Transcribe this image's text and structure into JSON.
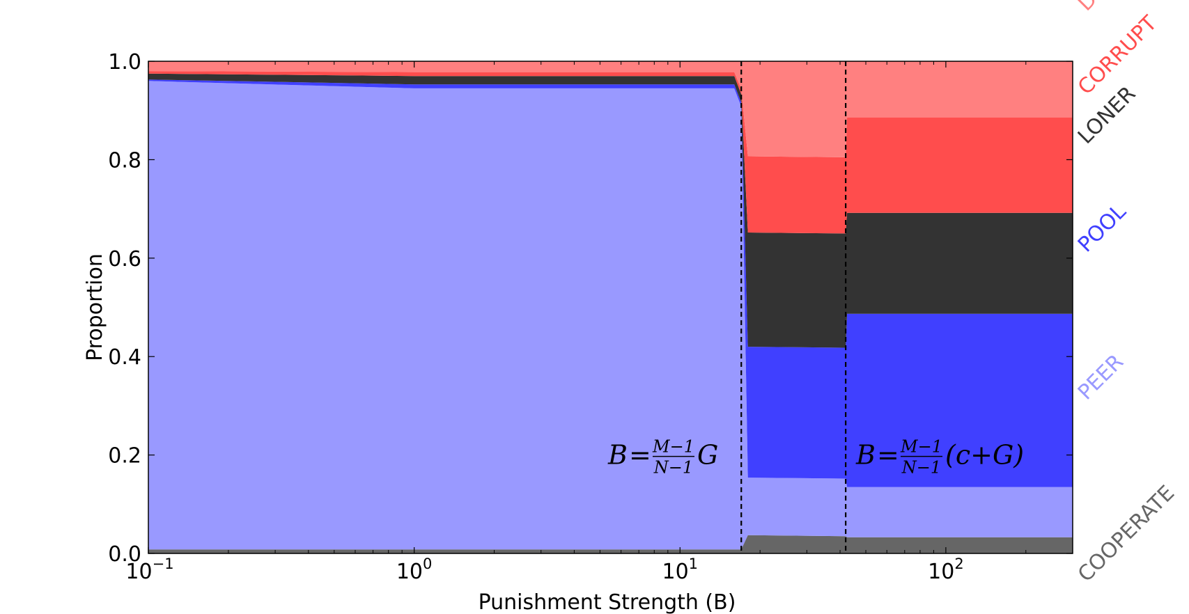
{
  "chart_data": {
    "type": "area",
    "xscale": "log",
    "xlim": [
      0.1,
      300
    ],
    "ylim": [
      0,
      1
    ],
    "xlabel": "Punishment Strength (B)",
    "ylabel": "Proportion",
    "yticks": [
      "0.0",
      "0.2",
      "0.4",
      "0.6",
      "0.8",
      "1.0"
    ],
    "ytick_values": [
      0,
      0.2,
      0.4,
      0.6,
      0.8,
      1.0
    ],
    "xticks": [
      {
        "value": 0.1,
        "base": "10",
        "exp": "−1"
      },
      {
        "value": 1,
        "base": "10",
        "exp": "0"
      },
      {
        "value": 10,
        "base": "10",
        "exp": "1"
      },
      {
        "value": 100,
        "base": "10",
        "exp": "2"
      }
    ],
    "x": [
      0.1,
      1,
      16,
      17,
      18,
      42,
      42.5,
      300
    ],
    "series": [
      {
        "name": "COOPERATE",
        "color": "#666666",
        "values": [
          0.008,
          0.008,
          0.008,
          0.008,
          0.037,
          0.035,
          0.033,
          0.033
        ]
      },
      {
        "name": "PEER",
        "color": "#9999ff",
        "values": [
          0.952,
          0.937,
          0.937,
          0.9,
          0.117,
          0.117,
          0.102,
          0.102
        ]
      },
      {
        "name": "POOL",
        "color": "#4040ff",
        "values": [
          0.003,
          0.008,
          0.008,
          0.008,
          0.266,
          0.266,
          0.352,
          0.352
        ]
      },
      {
        "name": "LONER",
        "color": "#333333",
        "values": [
          0.012,
          0.017,
          0.017,
          0.017,
          0.232,
          0.232,
          0.205,
          0.205
        ]
      },
      {
        "name": "CORRUPT",
        "color": "#ff4d4d",
        "values": [
          0.005,
          0.008,
          0.008,
          0.01,
          0.155,
          0.155,
          0.194,
          0.194
        ]
      },
      {
        "name": "DEFECT",
        "color": "#ff8080",
        "values": [
          0.02,
          0.022,
          0.022,
          0.057,
          0.193,
          0.195,
          0.114,
          0.114
        ]
      }
    ],
    "thresholds": [
      {
        "x": 17,
        "label_lhs": "B",
        "label_eq": "=",
        "num": "M−1",
        "den": "N−1",
        "label_rhs": "G"
      },
      {
        "x": 42,
        "label_lhs": "B",
        "label_eq": "=",
        "num": "M−1",
        "den": "N−1",
        "label_rhs": "(c+G)"
      }
    ]
  }
}
